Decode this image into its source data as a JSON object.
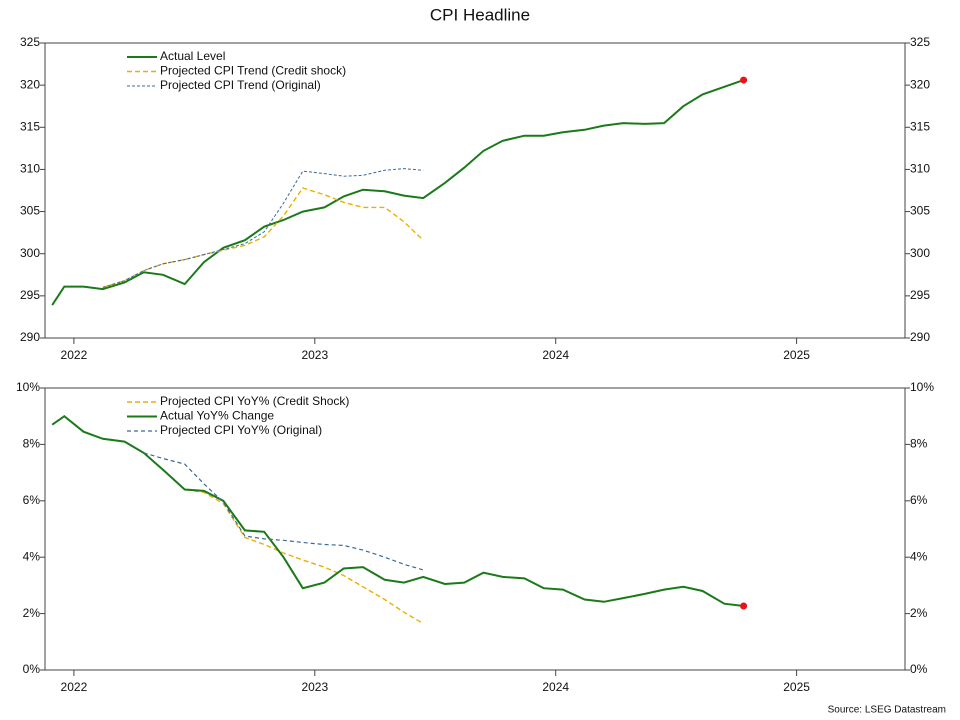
{
  "chart_data": [
    {
      "type": "line",
      "title": "CPI Headline",
      "xlim": [
        2021.88,
        2025.45
      ],
      "xticks": [
        2022,
        2023,
        2024,
        2025
      ],
      "ylim": [
        290,
        325
      ],
      "yticks": [
        290,
        295,
        300,
        305,
        310,
        315,
        320,
        325
      ],
      "legend": "upper left",
      "end_marker_color": "#e8141c",
      "series": [
        {
          "name": "Actual Level",
          "color": "#1a7a1a",
          "style": "solid",
          "x": [
            2021.91,
            2021.96,
            2022.04,
            2022.12,
            2022.21,
            2022.29,
            2022.37,
            2022.46,
            2022.54,
            2022.62,
            2022.71,
            2022.79,
            2022.87,
            2022.95,
            2023.04,
            2023.12,
            2023.2,
            2023.29,
            2023.37,
            2023.45,
            2023.54,
            2023.62,
            2023.7,
            2023.78,
            2023.87,
            2023.95,
            2024.03,
            2024.12,
            2024.2,
            2024.28,
            2024.37,
            2024.45,
            2024.53,
            2024.61,
            2024.7,
            2024.78
          ],
          "values": [
            293.9,
            296.1,
            296.1,
            295.8,
            296.6,
            297.8,
            297.5,
            296.4,
            299.0,
            300.7,
            301.6,
            303.2,
            304.0,
            305.0,
            305.5,
            306.8,
            307.6,
            307.4,
            306.9,
            306.6,
            308.4,
            310.2,
            312.2,
            313.4,
            314.0,
            314.0,
            314.4,
            314.7,
            315.2,
            315.5,
            315.4,
            315.5,
            317.5,
            318.9,
            319.8,
            320.6
          ]
        },
        {
          "name": "Projected CPI Trend (Credit shock)",
          "color": "#e8b000",
          "style": "dashed",
          "x": [
            2022.12,
            2022.21,
            2022.29,
            2022.37,
            2022.46,
            2022.54,
            2022.62,
            2022.71,
            2022.79,
            2022.87,
            2022.95,
            2023.04,
            2023.12,
            2023.2,
            2023.29,
            2023.37,
            2023.45
          ],
          "values": [
            296.0,
            296.8,
            298.0,
            298.8,
            299.3,
            299.9,
            300.4,
            301.0,
            302.0,
            304.5,
            307.8,
            307.0,
            306.1,
            305.5,
            305.5,
            303.8,
            301.6
          ]
        },
        {
          "name": "Projected CPI Trend (Original)",
          "color": "#3a6a9a",
          "style": "dotted",
          "x": [
            2022.12,
            2022.21,
            2022.29,
            2022.37,
            2022.46,
            2022.54,
            2022.62,
            2022.71,
            2022.79,
            2022.87,
            2022.95,
            2023.04,
            2023.12,
            2023.2,
            2023.29,
            2023.37,
            2023.45
          ],
          "values": [
            296.0,
            296.8,
            298.0,
            298.8,
            299.3,
            299.9,
            300.5,
            301.2,
            302.6,
            306.0,
            309.8,
            309.5,
            309.2,
            309.3,
            309.9,
            310.1,
            309.9
          ]
        }
      ]
    },
    {
      "type": "line",
      "xlim": [
        2021.88,
        2025.45
      ],
      "xticks": [
        2022,
        2023,
        2024,
        2025
      ],
      "ylim": [
        0,
        10
      ],
      "yticks": [
        {
          "value": 0,
          "label": "0%"
        },
        {
          "value": 2,
          "label": "2%"
        },
        {
          "value": 4,
          "label": "4%"
        },
        {
          "value": 6,
          "label": "6%"
        },
        {
          "value": 8,
          "label": "8%"
        },
        {
          "value": 10,
          "label": "10%"
        }
      ],
      "legend": "upper left",
      "end_marker_color": "#e8141c",
      "source": "Source: LSEG Datastream",
      "series": [
        {
          "name": "Projected CPI YoY% (Credit Shock)",
          "color": "#e8b000",
          "style": "dashed",
          "x": [
            2022.29,
            2022.37,
            2022.46,
            2022.54,
            2022.62,
            2022.71,
            2022.79,
            2022.87,
            2022.95,
            2023.04,
            2023.12,
            2023.2,
            2023.29,
            2023.37,
            2023.45
          ],
          "values": [
            7.7,
            7.1,
            6.4,
            6.3,
            5.9,
            4.7,
            4.45,
            4.15,
            3.9,
            3.65,
            3.35,
            2.95,
            2.5,
            2.05,
            1.65
          ]
        },
        {
          "name": "Actual YoY% Change",
          "color": "#1a7a1a",
          "style": "solid",
          "x": [
            2021.91,
            2021.96,
            2022.04,
            2022.12,
            2022.21,
            2022.29,
            2022.37,
            2022.46,
            2022.54,
            2022.62,
            2022.71,
            2022.79,
            2022.87,
            2022.95,
            2023.04,
            2023.12,
            2023.2,
            2023.29,
            2023.37,
            2023.45,
            2023.54,
            2023.62,
            2023.7,
            2023.78,
            2023.87,
            2023.95,
            2024.03,
            2024.12,
            2024.2,
            2024.28,
            2024.37,
            2024.45,
            2024.53,
            2024.61,
            2024.7,
            2024.78
          ],
          "values": [
            8.7,
            9.0,
            8.45,
            8.2,
            8.1,
            7.7,
            7.1,
            6.4,
            6.35,
            6.0,
            4.95,
            4.9,
            4.0,
            2.9,
            3.1,
            3.6,
            3.65,
            3.2,
            3.1,
            3.3,
            3.05,
            3.1,
            3.45,
            3.3,
            3.25,
            2.9,
            2.85,
            2.5,
            2.42,
            2.55,
            2.7,
            2.85,
            2.95,
            2.8,
            2.35,
            2.27
          ]
        },
        {
          "name": "Projected CPI YoY% (Original)",
          "color": "#3a6a9a",
          "style": "dashed-thin",
          "x": [
            2022.29,
            2022.37,
            2022.46,
            2022.54,
            2022.62,
            2022.71,
            2022.79,
            2022.87,
            2022.95,
            2023.04,
            2023.12,
            2023.2,
            2023.29,
            2023.37,
            2023.45
          ],
          "values": [
            7.7,
            7.5,
            7.3,
            6.6,
            5.95,
            4.75,
            4.65,
            4.6,
            4.52,
            4.45,
            4.42,
            4.25,
            4.0,
            3.75,
            3.55
          ]
        }
      ]
    }
  ]
}
